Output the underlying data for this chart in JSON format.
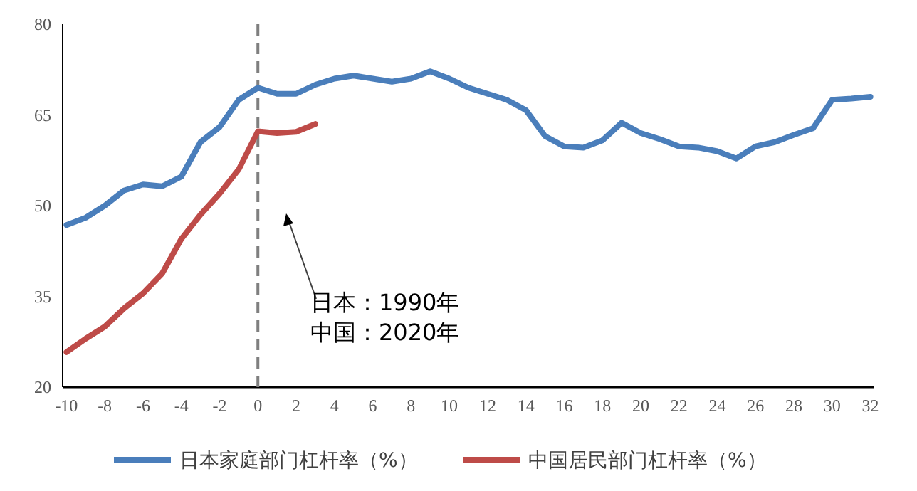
{
  "chart_data": {
    "type": "line",
    "x": [
      -10,
      -9,
      -8,
      -7,
      -6,
      -5,
      -4,
      -3,
      -2,
      -1,
      0,
      1,
      2,
      3,
      4,
      5,
      6,
      7,
      8,
      9,
      10,
      11,
      12,
      13,
      14,
      15,
      16,
      17,
      18,
      19,
      20,
      21,
      22,
      23,
      24,
      25,
      26,
      27,
      28,
      29,
      30,
      31,
      32
    ],
    "series": [
      {
        "name": "日本家庭部门杠杆率（%）",
        "color": "#4a7ebb",
        "values": [
          46.8,
          48,
          50,
          52.5,
          53.5,
          53.2,
          54.8,
          60.5,
          63,
          67.5,
          69.5,
          68.5,
          68.5,
          70,
          71,
          71.5,
          71,
          70.5,
          71,
          72.2,
          71,
          69.5,
          68.5,
          67.5,
          65.8,
          61.5,
          59.8,
          59.6,
          60.8,
          63.7,
          62,
          61,
          59.8,
          59.6,
          59,
          57.8,
          59.8,
          60.5,
          61.7,
          62.8,
          67.5,
          67.7,
          68
        ]
      },
      {
        "name": "中国居民部门杠杆率（%）",
        "color": "#be4b48",
        "x": [
          -10,
          -9,
          -8,
          -7,
          -6,
          -5,
          -4,
          -3,
          -2,
          -1,
          0,
          1,
          2,
          3
        ],
        "values": [
          25.8,
          28,
          30,
          33,
          35.5,
          38.8,
          44.5,
          48.5,
          52,
          56,
          62.3,
          62,
          62.2,
          63.5
        ]
      }
    ],
    "xlim": [
      -10.2,
      32.2
    ],
    "xticks": [
      -10,
      -8,
      -6,
      -4,
      -2,
      0,
      2,
      4,
      6,
      8,
      10,
      12,
      14,
      16,
      18,
      20,
      22,
      24,
      26,
      28,
      30,
      32
    ],
    "ylim": [
      20,
      80
    ],
    "yticks": [
      20,
      35,
      50,
      65,
      80
    ],
    "grid": false,
    "legend": "bottom",
    "marker": "none",
    "line_style": "solid",
    "ref_lines": [
      {
        "axis": "x",
        "value": 0,
        "color": "#7f7f7f",
        "line_style": "dashed"
      }
    ],
    "annotations": [
      "日本：1990年",
      "中国：2020年"
    ]
  }
}
